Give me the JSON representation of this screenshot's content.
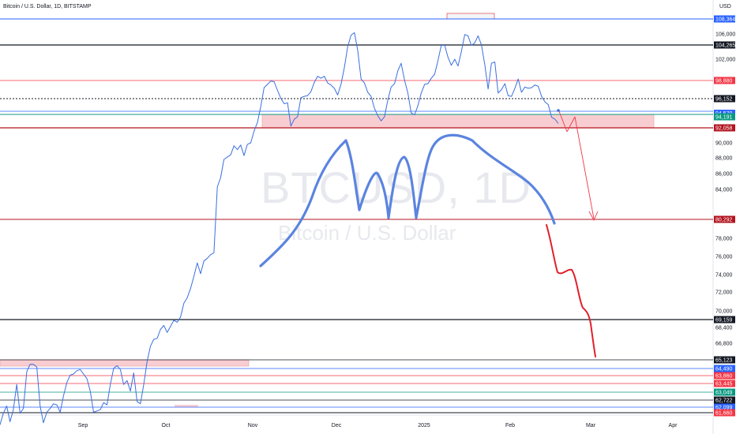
{
  "header": {
    "title": "Bitcoin / U.S. Dollar, 1D, BITSTAMP",
    "currency": "USD"
  },
  "watermark": {
    "symbol": "BTCUSD, 1D",
    "name": "Bitcoin / U.S. Dollar"
  },
  "colors": {
    "price_line": "#3a6fe0",
    "drawing_blue": "#5b84e0",
    "drawing_red": "#e0202a",
    "zone_fill": "#f8cdd1",
    "grid_black": "#131722"
  },
  "chart_data": {
    "type": "line",
    "symbol": "BTCUSD",
    "interval": "1D",
    "exchange": "BITSTAMP",
    "x_labels": [
      "Sep",
      "Oct",
      "Nov",
      "Dec",
      "2025",
      "Feb",
      "Mar",
      "Apr"
    ],
    "y_ticks": [
      "106,000",
      "102,000",
      "90,000",
      "88,000",
      "86,000",
      "84,000",
      "78,000",
      "76,000",
      "74,000",
      "72,000",
      "70,000",
      "68,400",
      "66,800"
    ],
    "price_labels": [
      {
        "value": "108,364",
        "bg": "#2962ff",
        "fg": "#ffffff"
      },
      {
        "value": "104,265",
        "bg": "#131722",
        "fg": "#ffffff"
      },
      {
        "value": "98,880",
        "bg": "#f23645",
        "fg": "#ffffff"
      },
      {
        "value": "96,152",
        "bg": "#131722",
        "fg": "#ffffff"
      },
      {
        "value": "94,570",
        "bg": "#2962ff",
        "fg": "#ffffff"
      },
      {
        "value": "94,191",
        "bg": "#089981",
        "fg": "#ffffff"
      },
      {
        "value": "92,058",
        "bg": "#b2141f",
        "fg": "#ffffff"
      },
      {
        "value": "80,292",
        "bg": "#b2141f",
        "fg": "#ffffff"
      },
      {
        "value": "69,159",
        "bg": "#131722",
        "fg": "#ffffff"
      },
      {
        "value": "65,123",
        "bg": "#131722",
        "fg": "#ffffff"
      },
      {
        "value": "64,490",
        "bg": "#2962ff",
        "fg": "#ffffff"
      },
      {
        "value": "63,860",
        "bg": "#f23645",
        "fg": "#ffffff"
      },
      {
        "value": "63,445",
        "bg": "#f23645",
        "fg": "#ffffff"
      },
      {
        "value": "63,049",
        "bg": "#089981",
        "fg": "#ffffff"
      },
      {
        "value": "62,722",
        "bg": "#131722",
        "fg": "#ffffff"
      },
      {
        "value": "62,099",
        "bg": "#2962ff",
        "fg": "#ffffff"
      },
      {
        "value": "61,660",
        "bg": "#f23645",
        "fg": "#ffffff"
      }
    ],
    "series": [
      {
        "values": [
          60500,
          61600,
          62200,
          60800,
          61900,
          63400,
          61600,
          62000,
          64200,
          64800,
          64800,
          64600,
          62200,
          60700,
          61700,
          62000,
          62400,
          62300,
          61700,
          62900,
          63500,
          63900,
          64000,
          64300,
          64400,
          64000,
          63700,
          63100,
          61700,
          61800,
          61900,
          62500,
          62300,
          63400,
          64500,
          64700,
          64400,
          63400,
          63600,
          63100,
          64100,
          62600,
          62400,
          63400,
          65000,
          66500,
          67200,
          67300,
          68200,
          68600,
          67900,
          68500,
          69100,
          68900,
          69400,
          70800,
          71400,
          72400,
          73800,
          75300,
          74100,
          75500,
          75800,
          76200,
          76400,
          84300,
          85500,
          87800,
          88100,
          88400,
          89600,
          89100,
          89700,
          88300,
          89800,
          90000,
          91600,
          93100,
          95300,
          97800,
          98300,
          98800,
          98700,
          97400,
          96200,
          95600,
          95700,
          92400,
          93700,
          94200,
          96300,
          96500,
          96600,
          97200,
          98600,
          99500,
          99200,
          99500,
          98500,
          98200,
          97700,
          96700,
          98300,
          100800,
          104000,
          105800,
          106200,
          103400,
          99100,
          98500,
          97100,
          96500,
          95100,
          94300,
          93400,
          94200,
          96000,
          97900,
          98400,
          100300,
          101400,
          98900,
          97000,
          94600,
          94400,
          95400,
          97000,
          98300,
          98400,
          99200,
          99800,
          101800,
          104200,
          104200,
          102300,
          101100,
          102000,
          101000,
          103200,
          105900,
          105700,
          104200,
          104600,
          105700,
          104300,
          101200,
          97600,
          101400,
          101600,
          97000,
          97500,
          98400,
          96600,
          96500,
          97700,
          99100,
          97100,
          97900,
          97700,
          97800,
          98200,
          98000,
          96500,
          95800,
          95500,
          94100,
          93700,
          92900
        ]
      }
    ]
  }
}
